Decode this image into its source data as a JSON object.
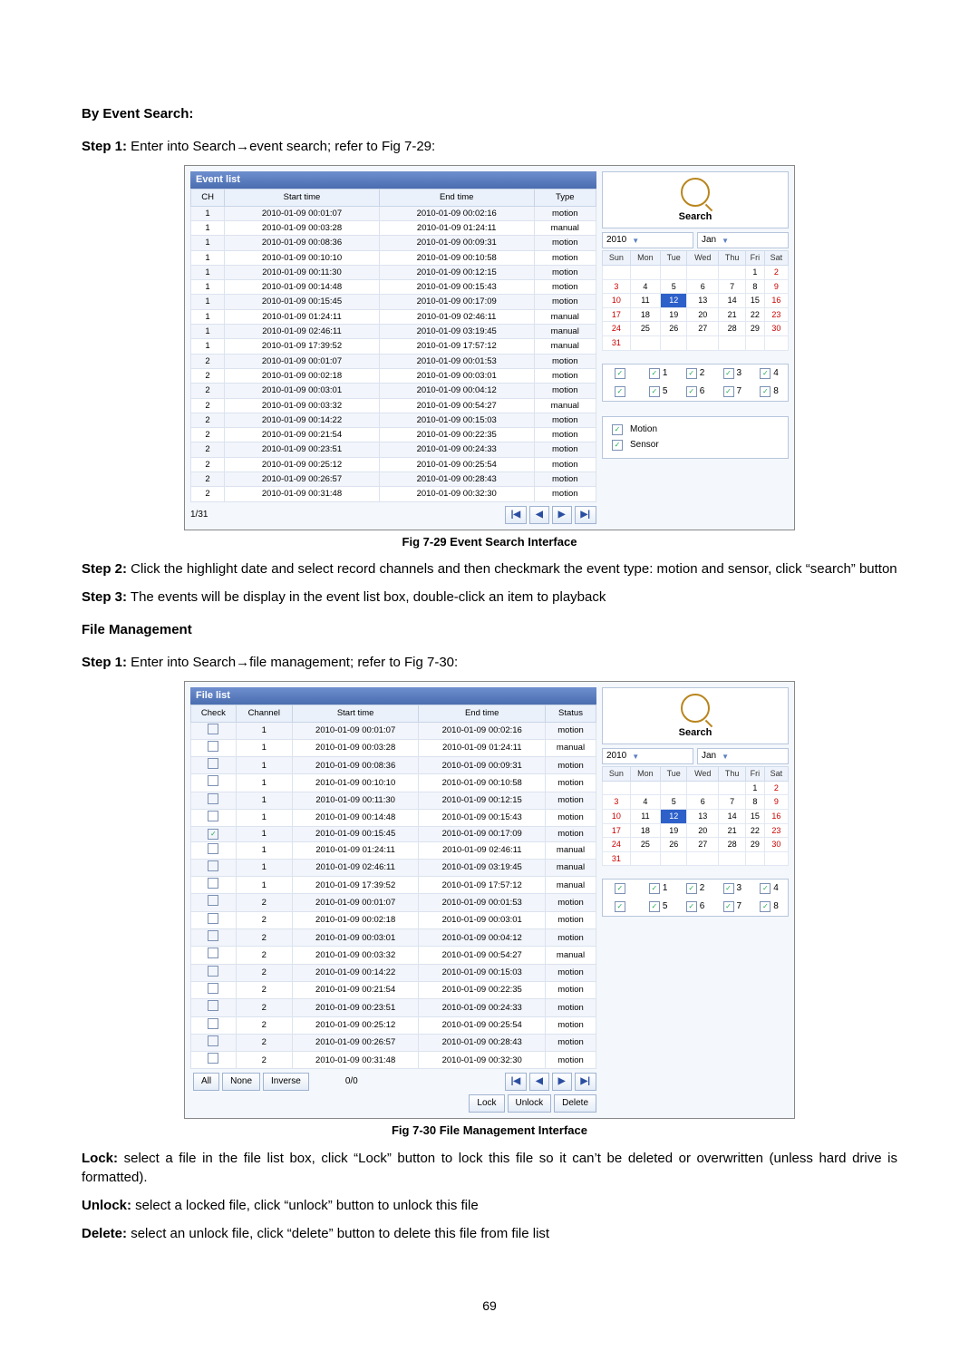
{
  "section1_title": "By Event Search:",
  "step1a": "Step 1:",
  "step1a_text": " Enter into Search→event search; refer to Fig 7-29:",
  "fig729": "Fig 7-29 Event Search Interface",
  "step2_label": "Step 2:",
  "step2_text": " Click the highlight date and select record channels and then checkmark the event type: motion and sensor, click “search” button",
  "step3_label": "Step 3:",
  "step3_text": " The events will be display in the event list box, double-click an item to playback",
  "section2_title": "File Management",
  "step1b": "Step 1:",
  "step1b_text": " Enter into Search→file management; refer to Fig 7-30:",
  "fig730": "Fig 7-30 File Management Interface",
  "lock_label": "Lock:",
  "lock_text": " select a file in the file list box, click “Lock” button to lock this file so it can’t be deleted or overwritten (unless hard drive is formatted).",
  "unlock_label": "Unlock:",
  "unlock_text": " select a locked file, click “unlock” button to unlock this file",
  "delete_label": "Delete:",
  "delete_text": " select an unlock file, click “delete” button to delete this file from file list",
  "page_number": "69",
  "event_list": {
    "title": "Event list",
    "cols": [
      "CH",
      "Start time",
      "End time",
      "Type"
    ],
    "rows": [
      [
        "1",
        "2010-01-09 00:01:07",
        "2010-01-09 00:02:16",
        "motion"
      ],
      [
        "1",
        "2010-01-09 00:03:28",
        "2010-01-09 01:24:11",
        "manual"
      ],
      [
        "1",
        "2010-01-09 00:08:36",
        "2010-01-09 00:09:31",
        "motion"
      ],
      [
        "1",
        "2010-01-09 00:10:10",
        "2010-01-09 00:10:58",
        "motion"
      ],
      [
        "1",
        "2010-01-09 00:11:30",
        "2010-01-09 00:12:15",
        "motion"
      ],
      [
        "1",
        "2010-01-09 00:14:48",
        "2010-01-09 00:15:43",
        "motion"
      ],
      [
        "1",
        "2010-01-09 00:15:45",
        "2010-01-09 00:17:09",
        "motion"
      ],
      [
        "1",
        "2010-01-09 01:24:11",
        "2010-01-09 02:46:11",
        "manual"
      ],
      [
        "1",
        "2010-01-09 02:46:11",
        "2010-01-09 03:19:45",
        "manual"
      ],
      [
        "1",
        "2010-01-09 17:39:52",
        "2010-01-09 17:57:12",
        "manual"
      ],
      [
        "2",
        "2010-01-09 00:01:07",
        "2010-01-09 00:01:53",
        "motion"
      ],
      [
        "2",
        "2010-01-09 00:02:18",
        "2010-01-09 00:03:01",
        "motion"
      ],
      [
        "2",
        "2010-01-09 00:03:01",
        "2010-01-09 00:04:12",
        "motion"
      ],
      [
        "2",
        "2010-01-09 00:03:32",
        "2010-01-09 00:54:27",
        "manual"
      ],
      [
        "2",
        "2010-01-09 00:14:22",
        "2010-01-09 00:15:03",
        "motion"
      ],
      [
        "2",
        "2010-01-09 00:21:54",
        "2010-01-09 00:22:35",
        "motion"
      ],
      [
        "2",
        "2010-01-09 00:23:51",
        "2010-01-09 00:24:33",
        "motion"
      ],
      [
        "2",
        "2010-01-09 00:25:12",
        "2010-01-09 00:25:54",
        "motion"
      ],
      [
        "2",
        "2010-01-09 00:26:57",
        "2010-01-09 00:28:43",
        "motion"
      ],
      [
        "2",
        "2010-01-09 00:31:48",
        "2010-01-09 00:32:30",
        "motion"
      ]
    ],
    "pager_pos": "1/31"
  },
  "file_list": {
    "title": "File list",
    "cols": [
      "Check",
      "Channel",
      "Start time",
      "End time",
      "Status"
    ],
    "checked_row": 6,
    "rows": [
      [
        "1",
        "2010-01-09 00:01:07",
        "2010-01-09 00:02:16",
        "motion"
      ],
      [
        "1",
        "2010-01-09 00:03:28",
        "2010-01-09 01:24:11",
        "manual"
      ],
      [
        "1",
        "2010-01-09 00:08:36",
        "2010-01-09 00:09:31",
        "motion"
      ],
      [
        "1",
        "2010-01-09 00:10:10",
        "2010-01-09 00:10:58",
        "motion"
      ],
      [
        "1",
        "2010-01-09 00:11:30",
        "2010-01-09 00:12:15",
        "motion"
      ],
      [
        "1",
        "2010-01-09 00:14:48",
        "2010-01-09 00:15:43",
        "motion"
      ],
      [
        "1",
        "2010-01-09 00:15:45",
        "2010-01-09 00:17:09",
        "motion"
      ],
      [
        "1",
        "2010-01-09 01:24:11",
        "2010-01-09 02:46:11",
        "manual"
      ],
      [
        "1",
        "2010-01-09 02:46:11",
        "2010-01-09 03:19:45",
        "manual"
      ],
      [
        "1",
        "2010-01-09 17:39:52",
        "2010-01-09 17:57:12",
        "manual"
      ],
      [
        "2",
        "2010-01-09 00:01:07",
        "2010-01-09 00:01:53",
        "motion"
      ],
      [
        "2",
        "2010-01-09 00:02:18",
        "2010-01-09 00:03:01",
        "motion"
      ],
      [
        "2",
        "2010-01-09 00:03:01",
        "2010-01-09 00:04:12",
        "motion"
      ],
      [
        "2",
        "2010-01-09 00:03:32",
        "2010-01-09 00:54:27",
        "manual"
      ],
      [
        "2",
        "2010-01-09 00:14:22",
        "2010-01-09 00:15:03",
        "motion"
      ],
      [
        "2",
        "2010-01-09 00:21:54",
        "2010-01-09 00:22:35",
        "motion"
      ],
      [
        "2",
        "2010-01-09 00:23:51",
        "2010-01-09 00:24:33",
        "motion"
      ],
      [
        "2",
        "2010-01-09 00:25:12",
        "2010-01-09 00:25:54",
        "motion"
      ],
      [
        "2",
        "2010-01-09 00:26:57",
        "2010-01-09 00:28:43",
        "motion"
      ],
      [
        "2",
        "2010-01-09 00:31:48",
        "2010-01-09 00:32:30",
        "motion"
      ]
    ],
    "buttons": {
      "all": "All",
      "none": "None",
      "inverse": "Inverse",
      "count": "0/0",
      "lock": "Lock",
      "unlock": "Unlock",
      "delete": "Delete"
    }
  },
  "pager_icons": {
    "first": "|◀",
    "prev": "◀",
    "next": "▶",
    "last": "▶|"
  },
  "search_panel": {
    "label": "Search",
    "year": "2010",
    "month": "Jan",
    "weekdays": [
      "Sun",
      "Mon",
      "Tue",
      "Wed",
      "Thu",
      "Fri",
      "Sat"
    ],
    "calendar": [
      [
        "",
        "",
        "",
        "",
        "",
        "1",
        "2"
      ],
      [
        "3",
        "4",
        "5",
        "6",
        "7",
        "8",
        "9"
      ],
      [
        "10",
        "11",
        "12",
        "13",
        "14",
        "15",
        "16"
      ],
      [
        "17",
        "18",
        "19",
        "20",
        "21",
        "22",
        "23"
      ],
      [
        "24",
        "25",
        "26",
        "27",
        "28",
        "29",
        "30"
      ],
      [
        "31",
        "",
        "",
        "",
        "",
        "",
        ""
      ]
    ],
    "selected_day": "12",
    "channels": [
      "1",
      "2",
      "3",
      "4",
      "5",
      "6",
      "7",
      "8"
    ],
    "types": {
      "motion": "Motion",
      "sensor": "Sensor"
    }
  }
}
